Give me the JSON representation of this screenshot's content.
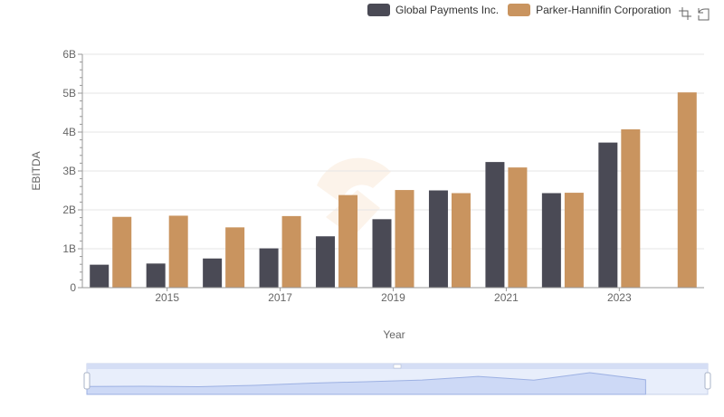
{
  "legend": {
    "items": [
      {
        "label": "Global Payments Inc.",
        "color": "#4a4a55"
      },
      {
        "label": "Parker-Hannifin Corporation",
        "color": "#c9945f"
      }
    ]
  },
  "toolbar": {
    "zoom_icon": "data-zoom-icon",
    "restore_icon": "restore-icon"
  },
  "chart_data": {
    "type": "bar",
    "title": "",
    "xlabel": "Year",
    "ylabel": "EBITDA",
    "categories": [
      "2014",
      "2015",
      "2016",
      "2017",
      "2018",
      "2019",
      "2020",
      "2021",
      "2022",
      "2023",
      "2024"
    ],
    "x_tick_labels": [
      "2015",
      "2017",
      "2019",
      "2021",
      "2023"
    ],
    "y_tick_labels": [
      "0",
      "1B",
      "2B",
      "3B",
      "4B",
      "5B",
      "6B"
    ],
    "ylim": [
      0,
      6000000000
    ],
    "grid": true,
    "legend_position": "top-right",
    "series": [
      {
        "name": "Global Payments Inc.",
        "color": "#4a4a55",
        "values": [
          590000000,
          620000000,
          750000000,
          1010000000,
          1320000000,
          1760000000,
          2500000000,
          3230000000,
          2430000000,
          3730000000,
          null
        ]
      },
      {
        "name": "Parker-Hannifin Corporation",
        "color": "#c9945f",
        "values": [
          1820000000,
          1850000000,
          1550000000,
          1840000000,
          2380000000,
          2510000000,
          2430000000,
          3090000000,
          2440000000,
          4070000000,
          5020000000
        ]
      }
    ]
  }
}
